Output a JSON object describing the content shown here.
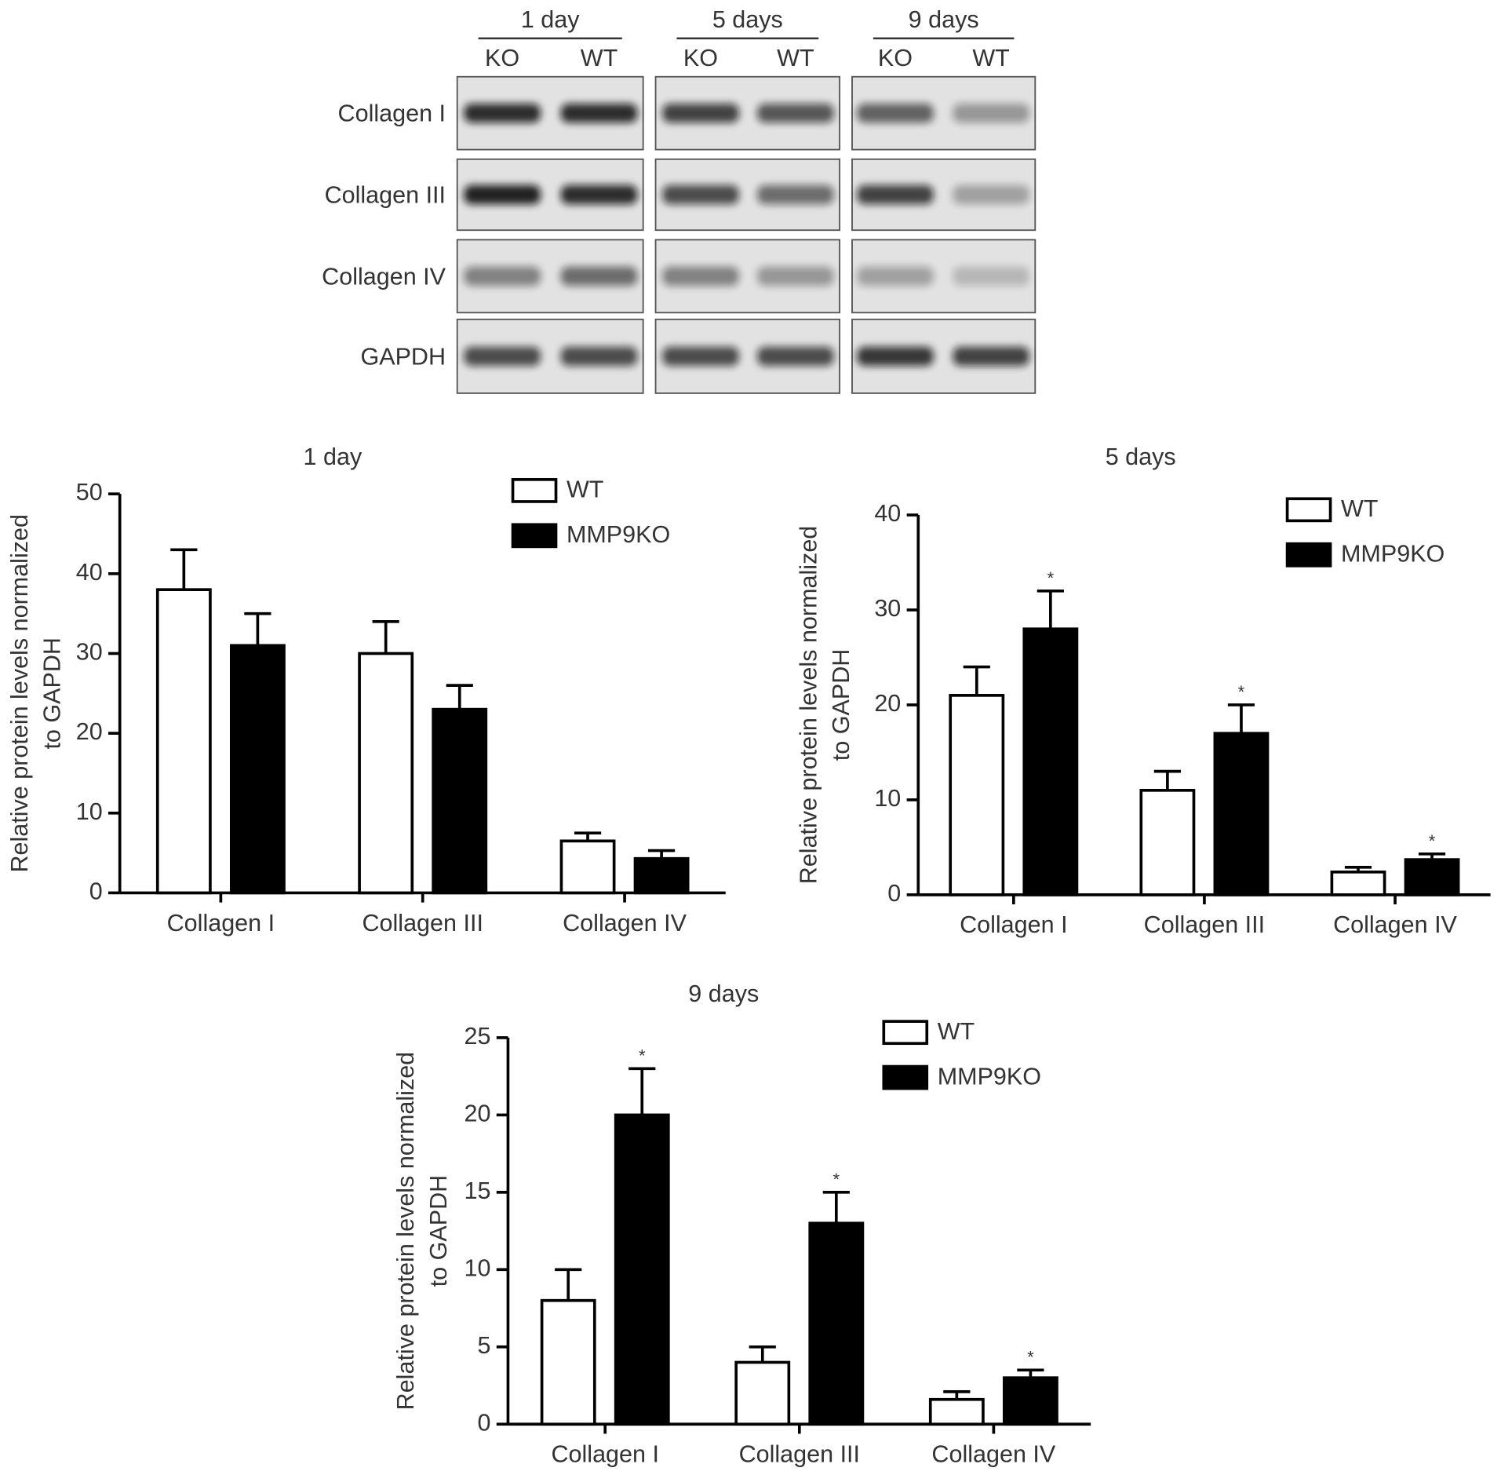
{
  "blot": {
    "groups": [
      "1 day",
      "5 days",
      "9 days"
    ],
    "lanes": [
      [
        "KO",
        "WT"
      ],
      [
        "KO",
        "WT"
      ],
      [
        "KO",
        "WT"
      ]
    ],
    "rows": [
      "Collagen I",
      "Collagen III",
      "Collagen IV",
      "GAPDH"
    ]
  },
  "chart_data": [
    {
      "type": "bar",
      "title": "1 day",
      "categories": [
        "Collagen I",
        "Collagen III",
        "Collagen IV"
      ],
      "ylabel": [
        "Relative protein levels normalized",
        "to GAPDH"
      ],
      "ylim": [
        0,
        50
      ],
      "yticks": [
        0,
        10,
        20,
        30,
        40,
        50
      ],
      "legend": "top-right",
      "series": [
        {
          "name": "WT",
          "color": "#ffffff",
          "values": [
            38,
            30,
            6.5
          ],
          "errors": [
            5,
            4,
            1
          ]
        },
        {
          "name": "MMP9KO",
          "color": "#000000",
          "values": [
            31,
            23,
            4.3
          ],
          "errors": [
            4,
            3,
            1
          ]
        }
      ]
    },
    {
      "type": "bar",
      "title": "5 days",
      "categories": [
        "Collagen I",
        "Collagen III",
        "Collagen IV"
      ],
      "ylabel": [
        "Relative protein levels normalized",
        "to GAPDH"
      ],
      "ylim": [
        0,
        40
      ],
      "yticks": [
        0,
        10,
        20,
        30,
        40
      ],
      "legend": "top-right",
      "series": [
        {
          "name": "WT",
          "color": "#ffffff",
          "values": [
            21,
            11,
            2.4
          ],
          "errors": [
            3,
            2,
            0.5
          ]
        },
        {
          "name": "MMP9KO",
          "color": "#000000",
          "values": [
            28,
            17,
            3.7
          ],
          "errors": [
            4,
            3,
            0.6
          ],
          "significance": [
            "*",
            "*",
            "*"
          ]
        }
      ]
    },
    {
      "type": "bar",
      "title": "9 days",
      "categories": [
        "Collagen I",
        "Collagen III",
        "Collagen IV"
      ],
      "ylabel": [
        "Relative protein levels normalized",
        "to GAPDH"
      ],
      "ylim": [
        0,
        25
      ],
      "yticks": [
        0,
        5,
        10,
        15,
        20,
        25
      ],
      "legend": "top-right",
      "series": [
        {
          "name": "WT",
          "color": "#ffffff",
          "values": [
            8,
            4,
            1.6
          ],
          "errors": [
            2,
            1,
            0.5
          ]
        },
        {
          "name": "MMP9KO",
          "color": "#000000",
          "values": [
            20,
            13,
            3
          ],
          "errors": [
            3,
            2,
            0.5
          ],
          "significance": [
            "*",
            "*",
            "*"
          ]
        }
      ]
    }
  ]
}
